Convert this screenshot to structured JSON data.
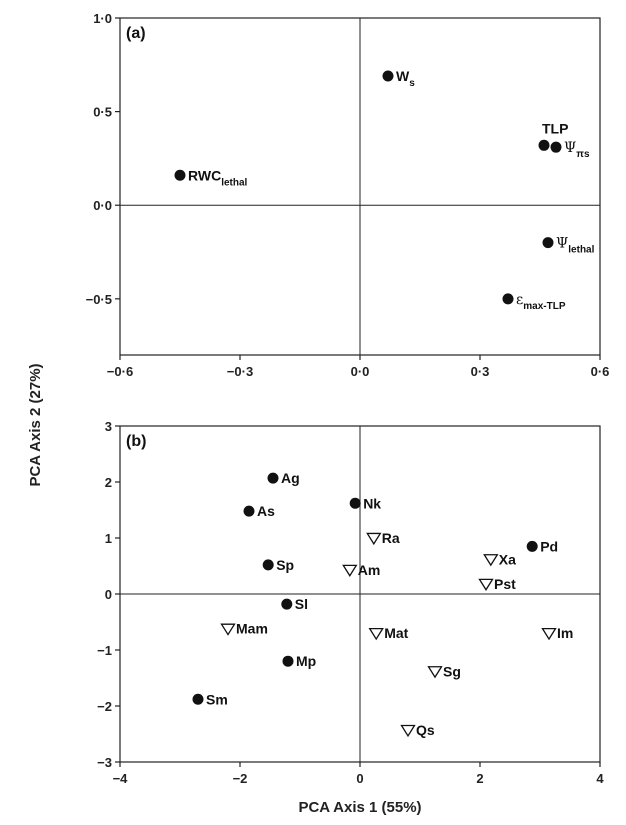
{
  "figure": {
    "y_axis_title": "PCA Axis 2 (27%)",
    "x_axis_title": "PCA Axis 1 (55%)"
  },
  "chart_data": [
    {
      "type": "scatter",
      "panel_label": "(a)",
      "xlim": [
        -0.6,
        0.6
      ],
      "ylim": [
        -0.8,
        1.0
      ],
      "xticks": [
        -0.6,
        -0.3,
        0.0,
        0.3,
        0.6
      ],
      "xtick_labels": [
        "−0·6",
        "−0·3",
        "0·0",
        "0·3",
        "0·6"
      ],
      "yticks": [
        -0.5,
        0.0,
        0.5,
        1.0
      ],
      "ytick_labels": [
        "−0·5",
        "0·0",
        "0·5",
        "1·0"
      ],
      "zero_lines": true,
      "points": [
        {
          "label": "W",
          "sub": "s",
          "x": 0.07,
          "y": 0.69,
          "marker": "filled-circle"
        },
        {
          "label": "TLP",
          "sub": "",
          "x": 0.46,
          "y": 0.32,
          "marker": "filled-circle"
        },
        {
          "label": "Ψ",
          "sub": "πs",
          "x": 0.49,
          "y": 0.31,
          "marker": "filled-circle"
        },
        {
          "label": "RWC",
          "sub": "lethal",
          "x": -0.45,
          "y": 0.16,
          "marker": "filled-circle"
        },
        {
          "label": "Ψ",
          "sub": "lethal",
          "x": 0.47,
          "y": -0.2,
          "marker": "filled-circle"
        },
        {
          "label": "ε",
          "sub": "max-TLP",
          "x": 0.37,
          "y": -0.5,
          "marker": "filled-circle"
        }
      ]
    },
    {
      "type": "scatter",
      "panel_label": "(b)",
      "xlim": [
        -4,
        4
      ],
      "ylim": [
        -3,
        3
      ],
      "xticks": [
        -4,
        -2,
        0,
        2,
        4
      ],
      "xtick_labels": [
        "−4",
        "−2",
        "0",
        "2",
        "4"
      ],
      "yticks": [
        -3,
        -2,
        -1,
        0,
        1,
        2,
        3
      ],
      "ytick_labels": [
        "−3",
        "−2",
        "−1",
        "0",
        "1",
        "2",
        "3"
      ],
      "zero_lines": true,
      "points": [
        {
          "label": "Ag",
          "x": -1.45,
          "y": 2.07,
          "marker": "filled-circle"
        },
        {
          "label": "As",
          "x": -1.85,
          "y": 1.48,
          "marker": "filled-circle"
        },
        {
          "label": "Nk",
          "x": -0.08,
          "y": 1.62,
          "marker": "filled-circle"
        },
        {
          "label": "Sp",
          "x": -1.53,
          "y": 0.52,
          "marker": "filled-circle"
        },
        {
          "label": "Sl",
          "x": -1.22,
          "y": -0.18,
          "marker": "filled-circle"
        },
        {
          "label": "Mp",
          "x": -1.2,
          "y": -1.2,
          "marker": "filled-circle"
        },
        {
          "label": "Sm",
          "x": -2.7,
          "y": -1.88,
          "marker": "filled-circle"
        },
        {
          "label": "Pd",
          "x": 2.87,
          "y": 0.85,
          "marker": "filled-circle"
        },
        {
          "label": "Ra",
          "x": 0.23,
          "y": 1.0,
          "marker": "open-triangle-down"
        },
        {
          "label": "Am",
          "x": -0.17,
          "y": 0.43,
          "marker": "open-triangle-down"
        },
        {
          "label": "Xa",
          "x": 2.18,
          "y": 0.62,
          "marker": "open-triangle-down"
        },
        {
          "label": "Pst",
          "x": 2.1,
          "y": 0.18,
          "marker": "open-triangle-down"
        },
        {
          "label": "Mam",
          "x": -2.2,
          "y": -0.62,
          "marker": "open-triangle-down"
        },
        {
          "label": "Mat",
          "x": 0.27,
          "y": -0.7,
          "marker": "open-triangle-down"
        },
        {
          "label": "Im",
          "x": 3.15,
          "y": -0.7,
          "marker": "open-triangle-down"
        },
        {
          "label": "Sg",
          "x": 1.25,
          "y": -1.38,
          "marker": "open-triangle-down"
        },
        {
          "label": "Qs",
          "x": 0.8,
          "y": -2.43,
          "marker": "open-triangle-down"
        }
      ]
    }
  ]
}
